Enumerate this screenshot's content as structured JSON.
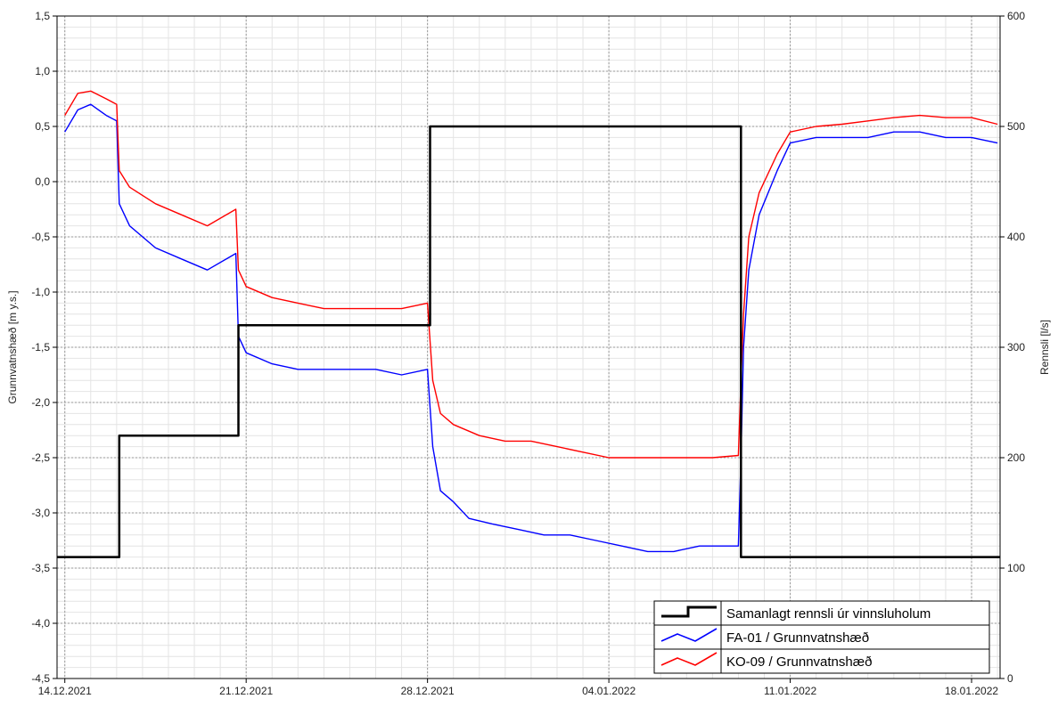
{
  "chart_data": {
    "type": "line",
    "ylabel": "Grunnvatnshæð [m y.s.]",
    "y2label": "Rennsli [l/s]",
    "xlim": [
      "2021-12-13.7",
      "2022-01-19.1"
    ],
    "ylim": [
      -4.5,
      1.5
    ],
    "y2lim": [
      0,
      600
    ],
    "grid": true,
    "legend_position": "bottom-right",
    "x_ticks": [
      {
        "date": "2021-12-14",
        "label": "14.12.2021"
      },
      {
        "date": "2021-12-21",
        "label": "21.12.2021"
      },
      {
        "date": "2021-12-28",
        "label": "28.12.2021"
      },
      {
        "date": "2022-01-04",
        "label": "04.01.2022"
      },
      {
        "date": "2022-01-11",
        "label": "11.01.2022"
      },
      {
        "date": "2022-01-18",
        "label": "18.01.2022"
      }
    ],
    "y_ticks": [
      "1,5",
      "1,0",
      "0,5",
      "0,0",
      "-0,5",
      "-1,0",
      "-1,5",
      "-2,0",
      "-2,5",
      "-3,0",
      "-3,5",
      "-4,0",
      "-4,5"
    ],
    "y2_ticks": [
      "600",
      "500",
      "400",
      "300",
      "200",
      "100",
      "0"
    ],
    "series": [
      {
        "name": "Samanlagt rennsli úr vinnsluholum",
        "axis": "right",
        "color": "#000000",
        "step": true,
        "points": [
          [
            "2021-12-13.7",
            110
          ],
          [
            "2021-12-16.1",
            110
          ],
          [
            "2021-12-16.1",
            220
          ],
          [
            "2021-12-20.7",
            220
          ],
          [
            "2021-12-20.7",
            320
          ],
          [
            "2021-12-28.1",
            320
          ],
          [
            "2021-12-28.1",
            500
          ],
          [
            "2022-01-09.1",
            500
          ],
          [
            "2022-01-09.1",
            110
          ],
          [
            "2022-01-19.1",
            110
          ]
        ]
      },
      {
        "name": "FA-01 / Grunnvatnshæð",
        "axis": "left",
        "color": "#0000ff",
        "points": [
          [
            "2021-12-14.0",
            0.45
          ],
          [
            "2021-12-14.5",
            0.65
          ],
          [
            "2021-12-15.0",
            0.7
          ],
          [
            "2021-12-15.6",
            0.6
          ],
          [
            "2021-12-16.0",
            0.55
          ],
          [
            "2021-12-16.1",
            -0.2
          ],
          [
            "2021-12-16.5",
            -0.4
          ],
          [
            "2021-12-17.5",
            -0.6
          ],
          [
            "2021-12-18.5",
            -0.7
          ],
          [
            "2021-12-19.5",
            -0.8
          ],
          [
            "2021-12-20.6",
            -0.65
          ],
          [
            "2021-12-20.7",
            -1.4
          ],
          [
            "2021-12-21.0",
            -1.55
          ],
          [
            "2021-12-22.0",
            -1.65
          ],
          [
            "2021-12-23.0",
            -1.7
          ],
          [
            "2021-12-24.0",
            -1.7
          ],
          [
            "2021-12-25.0",
            -1.7
          ],
          [
            "2021-12-26.0",
            -1.7
          ],
          [
            "2021-12-27.0",
            -1.75
          ],
          [
            "2021-12-28.0",
            -1.7
          ],
          [
            "2021-12-28.2",
            -2.4
          ],
          [
            "2021-12-28.5",
            -2.8
          ],
          [
            "2021-12-29.0",
            -2.9
          ],
          [
            "2021-12-29.6",
            -3.05
          ],
          [
            "2021-12-30.5",
            -3.1
          ],
          [
            "2021-12-31.5",
            -3.15
          ],
          [
            "2022-01-01.5",
            -3.2
          ],
          [
            "2022-01-02.5",
            -3.2
          ],
          [
            "2022-01-03.5",
            -3.25
          ],
          [
            "2022-01-04.5",
            -3.3
          ],
          [
            "2022-01-05.5",
            -3.35
          ],
          [
            "2022-01-06.5",
            -3.35
          ],
          [
            "2022-01-07.5",
            -3.3
          ],
          [
            "2022-01-08.5",
            -3.3
          ],
          [
            "2022-01-09.0",
            -3.3
          ],
          [
            "2022-01-09.1",
            -2.5
          ],
          [
            "2022-01-09.2",
            -1.5
          ],
          [
            "2022-01-09.4",
            -0.8
          ],
          [
            "2022-01-09.8",
            -0.3
          ],
          [
            "2022-01-10.5",
            0.1
          ],
          [
            "2022-01-11.0",
            0.35
          ],
          [
            "2022-01-12.0",
            0.4
          ],
          [
            "2022-01-13.0",
            0.4
          ],
          [
            "2022-01-14.0",
            0.4
          ],
          [
            "2022-01-15.0",
            0.45
          ],
          [
            "2022-01-16.0",
            0.45
          ],
          [
            "2022-01-17.0",
            0.4
          ],
          [
            "2022-01-18.0",
            0.4
          ],
          [
            "2022-01-19.0",
            0.35
          ]
        ]
      },
      {
        "name": "KO-09 / Grunnvatnshæð",
        "axis": "left",
        "color": "#ff0000",
        "points": [
          [
            "2021-12-14.0",
            0.6
          ],
          [
            "2021-12-14.5",
            0.8
          ],
          [
            "2021-12-15.0",
            0.82
          ],
          [
            "2021-12-15.6",
            0.75
          ],
          [
            "2021-12-16.0",
            0.7
          ],
          [
            "2021-12-16.1",
            0.1
          ],
          [
            "2021-12-16.5",
            -0.05
          ],
          [
            "2021-12-17.5",
            -0.2
          ],
          [
            "2021-12-18.5",
            -0.3
          ],
          [
            "2021-12-19.5",
            -0.4
          ],
          [
            "2021-12-20.6",
            -0.25
          ],
          [
            "2021-12-20.7",
            -0.8
          ],
          [
            "2021-12-21.0",
            -0.95
          ],
          [
            "2021-12-22.0",
            -1.05
          ],
          [
            "2021-12-23.0",
            -1.1
          ],
          [
            "2021-12-24.0",
            -1.15
          ],
          [
            "2021-12-25.0",
            -1.15
          ],
          [
            "2021-12-26.0",
            -1.15
          ],
          [
            "2021-12-27.0",
            -1.15
          ],
          [
            "2021-12-28.0",
            -1.1
          ],
          [
            "2021-12-28.2",
            -1.8
          ],
          [
            "2021-12-28.5",
            -2.1
          ],
          [
            "2021-12-29.0",
            -2.2
          ],
          [
            "2021-12-30.0",
            -2.3
          ],
          [
            "2021-12-31.0",
            -2.35
          ],
          [
            "2022-01-01.0",
            -2.35
          ],
          [
            "2022-01-02.0",
            -2.4
          ],
          [
            "2022-01-03.0",
            -2.45
          ],
          [
            "2022-01-04.0",
            -2.5
          ],
          [
            "2022-01-05.0",
            -2.5
          ],
          [
            "2022-01-06.0",
            -2.5
          ],
          [
            "2022-01-07.0",
            -2.5
          ],
          [
            "2022-01-08.0",
            -2.5
          ],
          [
            "2022-01-09.0",
            -2.48
          ],
          [
            "2022-01-09.1",
            -1.8
          ],
          [
            "2022-01-09.2",
            -1.2
          ],
          [
            "2022-01-09.4",
            -0.5
          ],
          [
            "2022-01-09.8",
            -0.1
          ],
          [
            "2022-01-10.5",
            0.25
          ],
          [
            "2022-01-11.0",
            0.45
          ],
          [
            "2022-01-12.0",
            0.5
          ],
          [
            "2022-01-13.0",
            0.52
          ],
          [
            "2022-01-14.0",
            0.55
          ],
          [
            "2022-01-15.0",
            0.58
          ],
          [
            "2022-01-16.0",
            0.6
          ],
          [
            "2022-01-17.0",
            0.58
          ],
          [
            "2022-01-18.0",
            0.58
          ],
          [
            "2022-01-19.0",
            0.52
          ]
        ]
      }
    ]
  }
}
